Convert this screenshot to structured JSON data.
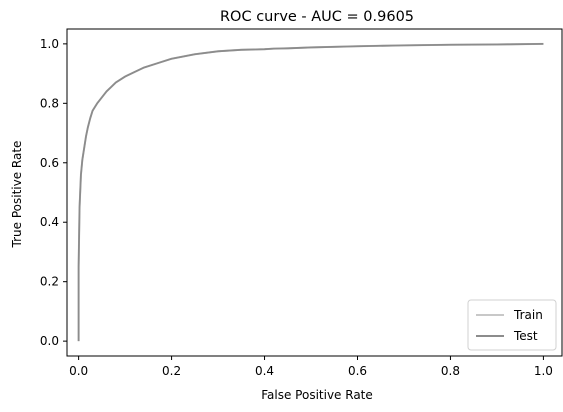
{
  "chart_data": {
    "type": "line",
    "title": "ROC curve - AUC = 0.9605",
    "xlabel": "False Positive Rate",
    "ylabel": "True Positive Rate",
    "xlim": [
      -0.025,
      1.04
    ],
    "ylim": [
      -0.05,
      1.05
    ],
    "x_ticks": [
      0.0,
      0.2,
      0.4,
      0.6,
      0.8,
      1.0
    ],
    "y_ticks": [
      0.0,
      0.2,
      0.4,
      0.6,
      0.8,
      1.0
    ],
    "x_tick_labels": [
      "0.0",
      "0.2",
      "0.4",
      "0.6",
      "0.8",
      "1.0"
    ],
    "y_tick_labels": [
      "0.0",
      "0.2",
      "0.4",
      "0.6",
      "0.8",
      "1.0"
    ],
    "grid": false,
    "legend_position": "lower-right",
    "series": [
      {
        "name": "Train",
        "color": "#c8c8c8",
        "x": [
          0.0,
          0.0,
          0.002,
          0.005,
          0.008,
          0.012,
          0.016,
          0.02,
          0.025,
          0.03,
          0.04,
          0.05,
          0.06,
          0.07,
          0.08,
          0.1,
          0.12,
          0.14,
          0.17,
          0.2,
          0.25,
          0.3,
          0.35,
          0.4,
          0.42,
          0.45,
          0.5,
          0.6,
          0.7,
          0.8,
          0.9,
          1.0
        ],
        "y": [
          0.0,
          0.25,
          0.45,
          0.56,
          0.61,
          0.65,
          0.69,
          0.72,
          0.75,
          0.775,
          0.8,
          0.82,
          0.84,
          0.855,
          0.87,
          0.89,
          0.905,
          0.92,
          0.935,
          0.95,
          0.965,
          0.975,
          0.98,
          0.982,
          0.984,
          0.985,
          0.988,
          0.992,
          0.995,
          0.997,
          0.998,
          1.0
        ]
      },
      {
        "name": "Test",
        "color": "#8c8c8c",
        "x": [
          0.0,
          0.0,
          0.002,
          0.005,
          0.008,
          0.012,
          0.016,
          0.02,
          0.025,
          0.03,
          0.04,
          0.05,
          0.06,
          0.07,
          0.08,
          0.1,
          0.12,
          0.14,
          0.17,
          0.2,
          0.25,
          0.3,
          0.35,
          0.4,
          0.42,
          0.45,
          0.5,
          0.6,
          0.7,
          0.8,
          0.9,
          1.0
        ],
        "y": [
          0.0,
          0.25,
          0.45,
          0.56,
          0.61,
          0.65,
          0.69,
          0.72,
          0.75,
          0.775,
          0.8,
          0.82,
          0.84,
          0.855,
          0.87,
          0.89,
          0.905,
          0.92,
          0.935,
          0.95,
          0.965,
          0.975,
          0.98,
          0.982,
          0.984,
          0.985,
          0.988,
          0.992,
          0.995,
          0.997,
          0.998,
          1.0
        ]
      }
    ]
  }
}
